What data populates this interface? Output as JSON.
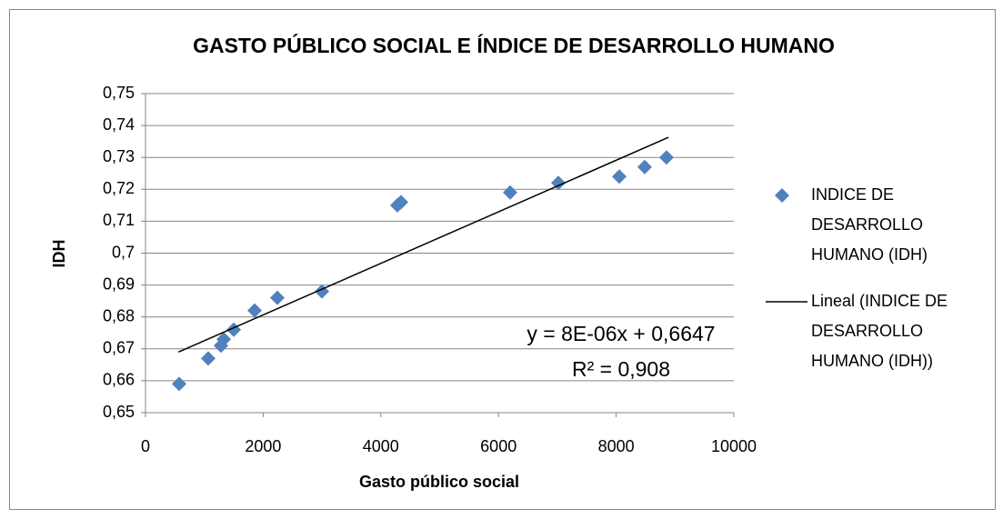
{
  "chart_data": {
    "type": "scatter",
    "title": "GASTO PÚBLICO SOCIAL E ÍNDICE DE DESARROLLO HUMANO",
    "x_label": "Gasto público social",
    "y_label": "IDH",
    "series": [
      {
        "name": "INDICE DE DESARROLLO HUMANO (IDH)",
        "color": "#4f81bd",
        "x": [
          572,
          1066,
          1283,
          1330,
          1500,
          1855,
          2241,
          2998,
          4281,
          4343,
          6198,
          7017,
          8053,
          8485,
          8856
        ],
        "values": [
          0.659,
          0.667,
          0.671,
          0.673,
          0.676,
          0.682,
          0.686,
          0.688,
          0.715,
          0.716,
          0.719,
          0.722,
          0.724,
          0.727,
          0.73
        ]
      }
    ],
    "trendline": {
      "name": "Lineal (INDICE DE DESARROLLO HUMANO (IDH))",
      "color": "#000000",
      "x": [
        560,
        8890
      ],
      "values": [
        0.669,
        0.7363
      ],
      "equation": "y = 8E-06x + 0,6647",
      "r_squared": "R² = 0,908"
    },
    "xlim": [
      0,
      10000
    ],
    "xticks": [
      0,
      2000,
      4000,
      6000,
      8000,
      10000
    ],
    "ylim": [
      0.65,
      0.75
    ],
    "yticks": [
      {
        "value": 0.65,
        "label": "0,65"
      },
      {
        "value": 0.66,
        "label": "0,66"
      },
      {
        "value": 0.67,
        "label": "0,67"
      },
      {
        "value": 0.68,
        "label": "0,68"
      },
      {
        "value": 0.69,
        "label": "0,69"
      },
      {
        "value": 0.7,
        "label": "0,7"
      },
      {
        "value": 0.71,
        "label": "0,71"
      },
      {
        "value": 0.72,
        "label": "0,72"
      },
      {
        "value": 0.73,
        "label": "0,73"
      },
      {
        "value": 0.74,
        "label": "0,74"
      },
      {
        "value": 0.75,
        "label": "0,75"
      }
    ],
    "grid": true,
    "legend": "right"
  }
}
